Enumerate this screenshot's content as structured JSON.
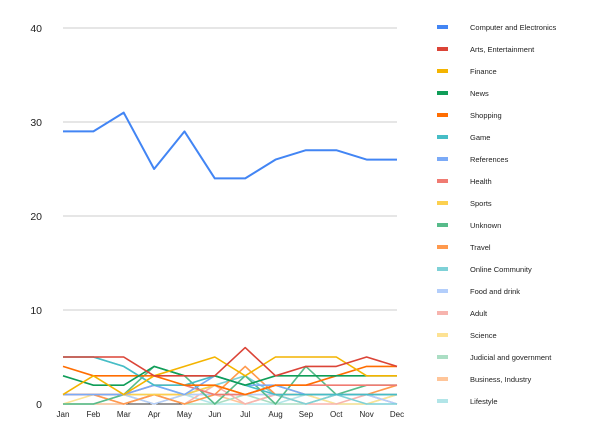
{
  "chart_data": {
    "type": "line",
    "title": "",
    "xlabel": "",
    "ylabel": "",
    "ylim": [
      0,
      40
    ],
    "yticks": [
      "0",
      "10",
      "20",
      "30",
      "40"
    ],
    "grid": true,
    "legend_position": "right",
    "categories": [
      "Jan",
      "Feb",
      "Mar",
      "Apr",
      "May",
      "Jun",
      "Jul",
      "Aug",
      "Sep",
      "Oct",
      "Nov",
      "Dec"
    ],
    "series": [
      {
        "name": "Computer and Electronics",
        "color": "#4285f4",
        "values": [
          29,
          29,
          31,
          25,
          29,
          24,
          24,
          26,
          27,
          27,
          26,
          26
        ]
      },
      {
        "name": "Arts, Entertainment",
        "color": "#db4437",
        "values": [
          5,
          5,
          5,
          3,
          3,
          3,
          6,
          3,
          4,
          4,
          5,
          4
        ]
      },
      {
        "name": "Finance",
        "color": "#f4b400",
        "values": [
          1,
          3,
          1,
          3,
          4,
          5,
          3,
          5,
          5,
          5,
          3,
          3
        ]
      },
      {
        "name": "News",
        "color": "#0f9d58",
        "values": [
          3,
          2,
          2,
          4,
          3,
          3,
          2,
          3,
          3,
          3,
          3,
          3
        ]
      },
      {
        "name": "Shopping",
        "color": "#ff6d01",
        "values": [
          4,
          3,
          3,
          3,
          2,
          2,
          1,
          2,
          2,
          3,
          4,
          4
        ]
      },
      {
        "name": "Game",
        "color": "#46bdc6",
        "values": [
          5,
          5,
          4,
          2,
          2,
          3,
          2,
          1,
          1,
          1,
          1,
          1
        ]
      },
      {
        "name": "References",
        "color": "#7baaf7",
        "values": [
          1,
          1,
          1,
          2,
          1,
          3,
          2,
          2,
          1,
          1,
          1,
          1
        ]
      },
      {
        "name": "Health",
        "color": "#f07b72",
        "values": [
          1,
          1,
          1,
          2,
          2,
          1,
          1,
          2,
          2,
          2,
          2,
          2
        ]
      },
      {
        "name": "Sports",
        "color": "#fcd04f",
        "values": [
          1,
          1,
          1,
          1,
          1,
          2,
          1,
          2,
          1,
          1,
          1,
          1
        ]
      },
      {
        "name": "Unknown",
        "color": "#57bb8a",
        "values": [
          0,
          0,
          1,
          4,
          3,
          0,
          3,
          0,
          4,
          1,
          2,
          2
        ]
      },
      {
        "name": "Travel",
        "color": "#ff994d",
        "values": [
          1,
          1,
          0,
          1,
          0,
          1,
          4,
          1,
          1,
          1,
          1,
          2
        ]
      },
      {
        "name": "Online Community",
        "color": "#7ed1d7",
        "values": [
          5,
          5,
          4,
          2,
          1,
          2,
          3,
          1,
          0,
          1,
          0,
          0
        ]
      },
      {
        "name": "Food and drink",
        "color": "#b3cefb",
        "values": [
          1,
          1,
          1,
          0,
          1,
          1,
          1,
          1,
          1,
          1,
          1,
          0
        ]
      },
      {
        "name": "Adult",
        "color": "#f7b4ae",
        "values": [
          1,
          1,
          0,
          1,
          0,
          2,
          0,
          1,
          0,
          0,
          1,
          0
        ]
      },
      {
        "name": "Science",
        "color": "#fde293",
        "values": [
          0,
          1,
          1,
          0,
          1,
          1,
          1,
          1,
          1,
          0,
          0,
          1
        ]
      },
      {
        "name": "Judicial and government",
        "color": "#abdec4",
        "values": [
          0,
          0,
          1,
          1,
          0,
          0,
          1,
          0,
          0,
          1,
          1,
          0
        ]
      },
      {
        "name": "Business, Industry",
        "color": "#ffc599",
        "values": [
          0,
          0,
          0,
          1,
          1,
          1,
          0,
          1,
          0,
          1,
          1,
          1
        ]
      },
      {
        "name": "Lifestyle",
        "color": "#b2e5e8",
        "values": [
          0,
          0,
          0,
          1,
          1,
          0,
          0,
          0,
          1,
          0,
          0,
          1
        ]
      }
    ]
  }
}
